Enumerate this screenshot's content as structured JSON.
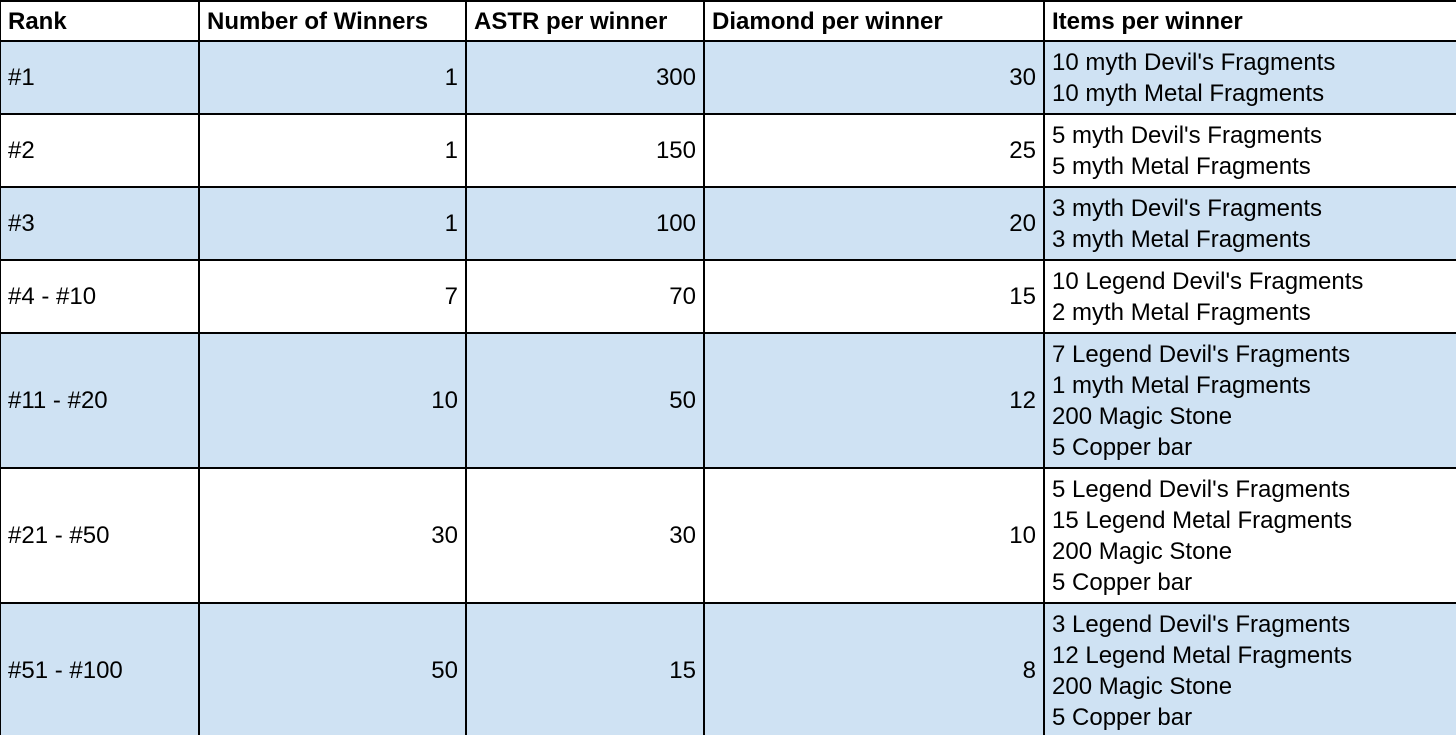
{
  "table": {
    "headers": [
      "Rank",
      "Number of Winners",
      "ASTR per winner",
      "Diamond per winner",
      "Items per winner"
    ],
    "rows": [
      {
        "rank": "#1",
        "winners": "1",
        "astr": "300",
        "diamond": "30",
        "items": [
          "10 myth Devil's Fragments",
          "10 myth Metal Fragments"
        ]
      },
      {
        "rank": "#2",
        "winners": "1",
        "astr": "150",
        "diamond": "25",
        "items": [
          "5 myth Devil's Fragments",
          "5 myth Metal Fragments"
        ]
      },
      {
        "rank": "#3",
        "winners": "1",
        "astr": "100",
        "diamond": "20",
        "items": [
          "3 myth Devil's Fragments",
          "3 myth Metal Fragments"
        ]
      },
      {
        "rank": "#4 - #10",
        "winners": "7",
        "astr": "70",
        "diamond": "15",
        "items": [
          "10 Legend Devil's Fragments",
          "2 myth Metal Fragments"
        ]
      },
      {
        "rank": "#11 - #20",
        "winners": "10",
        "astr": "50",
        "diamond": "12",
        "items": [
          "7 Legend Devil's Fragments",
          "1 myth Metal Fragments",
          "200 Magic Stone",
          "5 Copper bar"
        ]
      },
      {
        "rank": "#21 - #50",
        "winners": "30",
        "astr": "30",
        "diamond": "10",
        "items": [
          "5 Legend Devil's Fragments",
          "15 Legend Metal Fragments",
          "200 Magic Stone",
          "5 Copper bar"
        ]
      },
      {
        "rank": "#51 - #100",
        "winners": "50",
        "astr": "15",
        "diamond": "8",
        "items": [
          "3 Legend Devil's Fragments",
          "12 Legend Metal Fragments",
          "200 Magic Stone",
          "5 Copper bar"
        ]
      }
    ]
  },
  "colors": {
    "row_shade": "#cfe2f3",
    "row_plain": "#ffffff",
    "border": "#000000"
  }
}
